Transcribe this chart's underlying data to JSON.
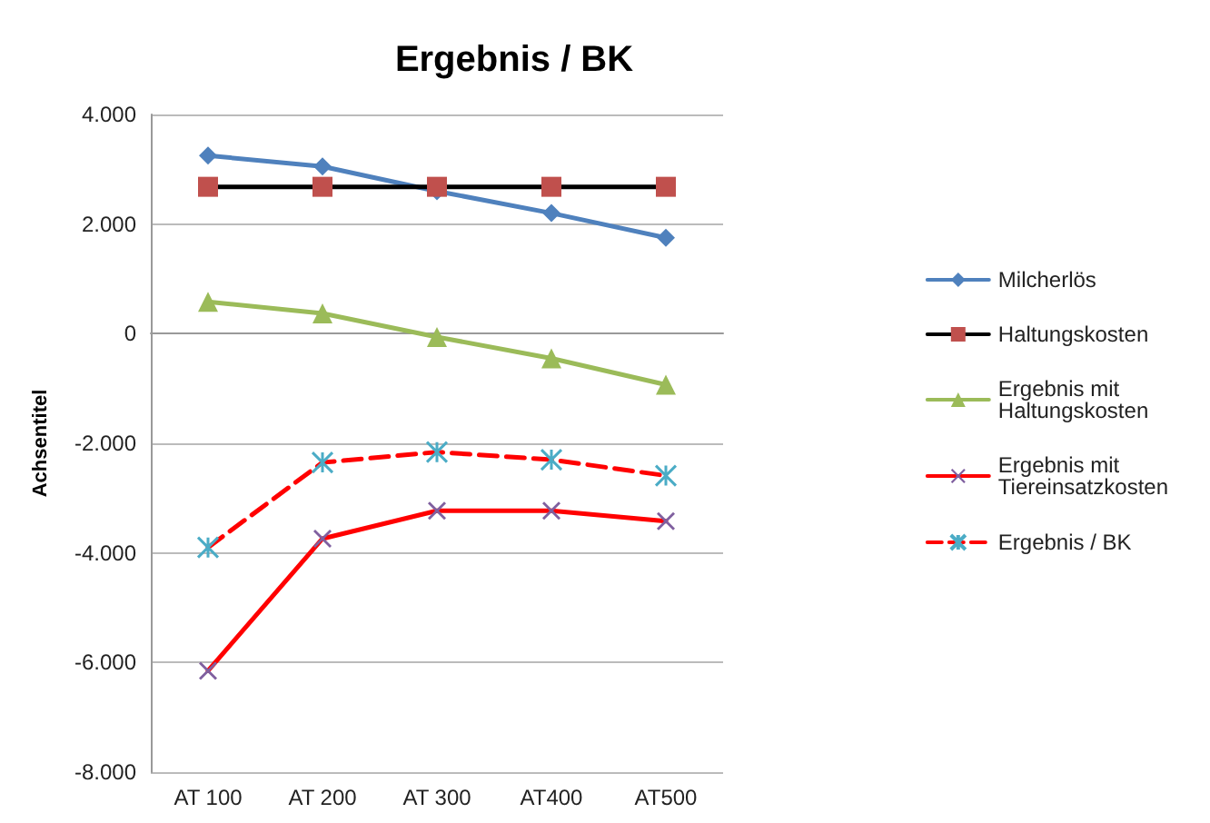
{
  "chart_data": {
    "type": "line",
    "title": "Ergebnis / BK",
    "ylabel": "Achsentitel",
    "categories": [
      "AT 100",
      "AT 200",
      "AT 300",
      "AT400",
      "AT500"
    ],
    "series": [
      {
        "name": "Milcherlös",
        "color": "#4f81bd",
        "marker": "diamond",
        "line_style": "solid",
        "values": [
          3250,
          3050,
          2600,
          2200,
          1750
        ]
      },
      {
        "name": "Haltungskosten",
        "color": "#000000",
        "marker": "square",
        "line_style": "solid",
        "values": [
          2680,
          2680,
          2680,
          2680,
          2680
        ]
      },
      {
        "name": "Ergebnis mit Haltungskosten",
        "color": "#9bbb59",
        "marker": "triangle",
        "line_style": "solid",
        "values": [
          580,
          370,
          -60,
          -450,
          -930
        ]
      },
      {
        "name": "Ergebnis mit Tiereinsatzkosten",
        "color": "#ff0000",
        "marker": "cross",
        "line_style": "solid",
        "values": [
          -6150,
          -3740,
          -3230,
          -3230,
          -3420
        ]
      },
      {
        "name": "Ergebnis / BK",
        "color": "#ff0000",
        "marker": "star",
        "line_style": "dashed",
        "values": [
          -3900,
          -2350,
          -2160,
          -2300,
          -2590
        ]
      }
    ],
    "ylim": [
      -8000,
      4000
    ],
    "yticks": [
      {
        "value": -8000,
        "label": "-8.000"
      },
      {
        "value": -6000,
        "label": "-6.000"
      },
      {
        "value": -4000,
        "label": "-4.000"
      },
      {
        "value": -2000,
        "label": "-2.000"
      },
      0,
      {
        "value": 2000,
        "label": "2.000"
      },
      {
        "value": 4000,
        "label": "4.000"
      }
    ],
    "grid": "y",
    "legend": "right"
  }
}
